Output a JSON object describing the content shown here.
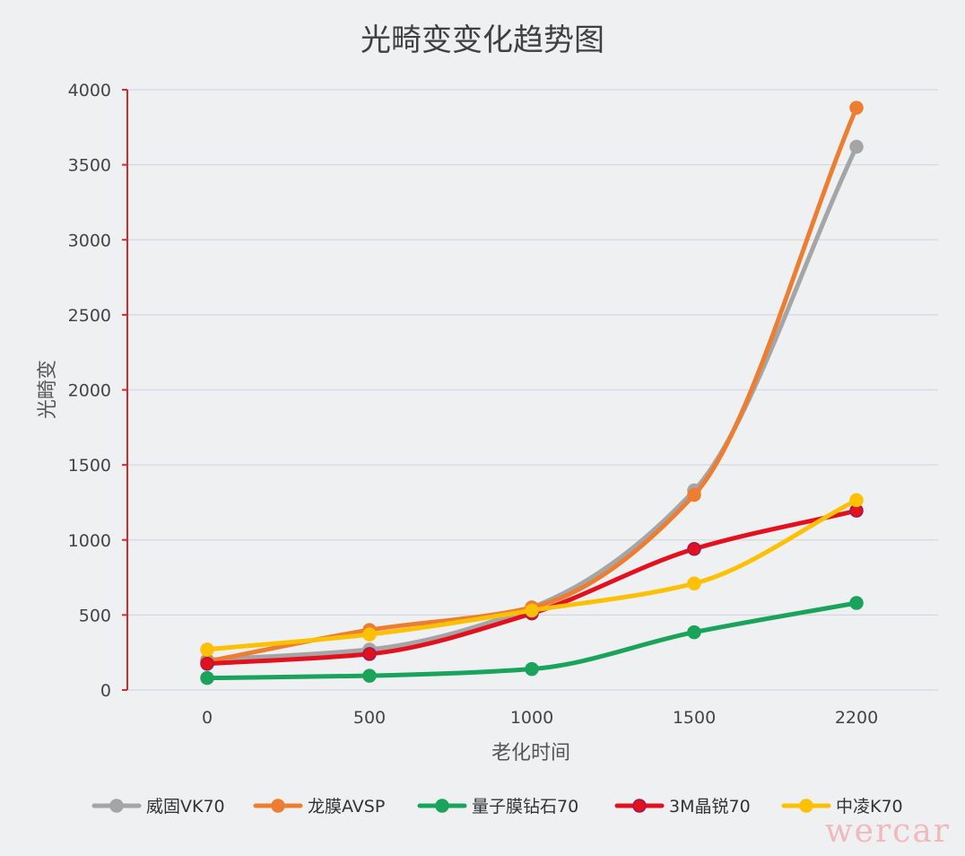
{
  "chart_data": {
    "type": "line",
    "title": "光畸变变化趋势图",
    "xlabel": "老化时间",
    "ylabel": "光畸变",
    "categories": [
      "0",
      "500",
      "1000",
      "1500",
      "2200"
    ],
    "ylim": [
      0,
      4000
    ],
    "yticks": [
      0,
      500,
      1000,
      1500,
      2000,
      2500,
      3000,
      3500,
      4000
    ],
    "grid": true,
    "legend_position": "bottom",
    "series": [
      {
        "name": "威固VK70",
        "color": "#a5a5a5",
        "values": [
          200,
          270,
          550,
          1330,
          3620
        ]
      },
      {
        "name": "龙膜AVSP",
        "color": "#ed7d31",
        "values": [
          190,
          400,
          550,
          1300,
          3880
        ]
      },
      {
        "name": "量子膜钻石70",
        "color": "#1aa35a",
        "values": [
          80,
          95,
          140,
          385,
          580
        ]
      },
      {
        "name": "3M晶锐70",
        "color": "#e3101e",
        "values": [
          175,
          240,
          510,
          940,
          1195
        ]
      },
      {
        "name": "中凌K70",
        "color": "#ffc000",
        "values": [
          270,
          370,
          530,
          710,
          1265
        ]
      }
    ]
  },
  "colors": {
    "background": "#eef0f2",
    "grid": "#d6d9dc",
    "y_axis": "#d42a2a"
  },
  "watermark": "wercar"
}
